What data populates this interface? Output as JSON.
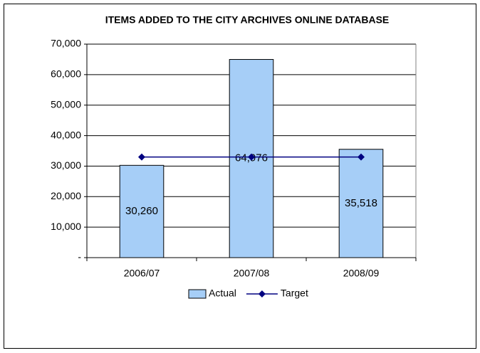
{
  "chart_data": {
    "type": "bar",
    "title": "ITEMS ADDED TO THE CITY ARCHIVES ONLINE DATABASE",
    "categories": [
      "2006/07",
      "2007/08",
      "2008/09"
    ],
    "series": [
      {
        "name": "Actual",
        "type": "bar",
        "color": "#a6cef7",
        "values": [
          30260,
          64976,
          35518
        ],
        "value_labels": [
          "30,260",
          "64,976",
          "35,518"
        ]
      },
      {
        "name": "Target",
        "type": "line",
        "color": "#000080",
        "values": [
          33000,
          33000,
          33000
        ]
      }
    ],
    "ylim": [
      0,
      70000
    ],
    "yticks": [
      {
        "value": 0,
        "label": "-"
      },
      {
        "value": 10000,
        "label": "10,000"
      },
      {
        "value": 20000,
        "label": "20,000"
      },
      {
        "value": 30000,
        "label": "30,000"
      },
      {
        "value": 40000,
        "label": "40,000"
      },
      {
        "value": 50000,
        "label": "50,000"
      },
      {
        "value": 60000,
        "label": "60,000"
      },
      {
        "value": 70000,
        "label": "70,000"
      }
    ],
    "grid": true,
    "legend": "bottom"
  }
}
